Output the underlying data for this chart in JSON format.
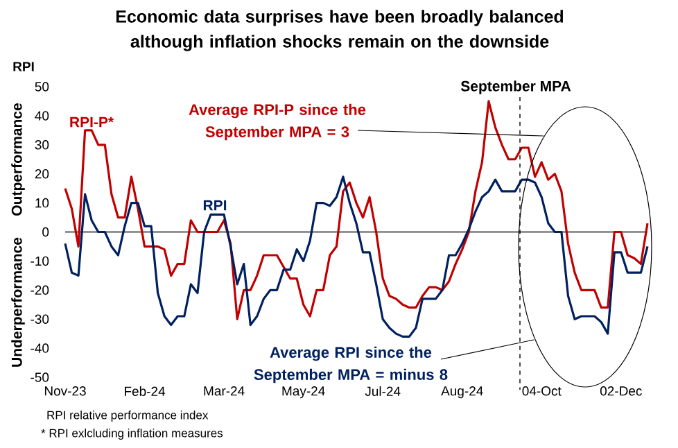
{
  "chart_data": {
    "type": "line",
    "title": "Economic data surprises have been broadly balanced although inflation shocks remain on the downside",
    "ylabel": "RPI",
    "categories": [
      "Nov-23",
      null,
      null,
      null,
      null,
      null,
      null,
      null,
      null,
      null,
      null,
      null,
      "Feb-24",
      null,
      null,
      null,
      null,
      null,
      null,
      null,
      null,
      null,
      null,
      null,
      "Mar-24",
      null,
      null,
      null,
      null,
      null,
      null,
      null,
      null,
      null,
      null,
      null,
      "May-24",
      null,
      null,
      null,
      null,
      null,
      null,
      null,
      null,
      null,
      null,
      null,
      "Jul-24",
      null,
      null,
      null,
      null,
      null,
      null,
      null,
      null,
      null,
      null,
      null,
      "Aug-24",
      null,
      null,
      null,
      null,
      null,
      null,
      null,
      null,
      null,
      null,
      null,
      "04-Oct",
      null,
      null,
      null,
      null,
      null,
      null,
      null,
      null,
      null,
      null,
      null,
      "02-Dec",
      null,
      null,
      null,
      null
    ],
    "series": [
      {
        "name": "RPI-P*",
        "color": "#c00000",
        "values": [
          15,
          8,
          -5,
          35,
          35,
          30,
          30,
          13,
          5,
          5,
          19,
          8,
          -5,
          -5,
          -5,
          -6,
          -15,
          -11,
          -11,
          4,
          0,
          0,
          0,
          0,
          4,
          -4,
          -30,
          -20,
          -20,
          -15,
          -8,
          -8,
          -8,
          -12,
          -16,
          -16,
          -25,
          -29,
          -20,
          -20,
          -8,
          -5,
          14,
          17,
          10,
          5,
          12,
          0,
          -16,
          -22,
          -23,
          -25,
          -26,
          -26,
          -22,
          -19,
          -19,
          -20,
          -17,
          -11,
          -6,
          0,
          14,
          24,
          45,
          36,
          30,
          25,
          25,
          29,
          29,
          19,
          24,
          18,
          20,
          14,
          -4,
          -14,
          -20,
          -20,
          -20,
          -26,
          -26,
          0,
          0,
          -8,
          -9,
          -11,
          3
        ]
      },
      {
        "name": "RPI",
        "color": "#002060",
        "values": [
          -4,
          -14,
          -15,
          13,
          4,
          0,
          0,
          -5,
          -8,
          2,
          10,
          10,
          2,
          2,
          -21,
          -29,
          -32,
          -29,
          -29,
          -18,
          -21,
          0,
          6,
          6,
          6,
          -5,
          -18,
          -11,
          -32,
          -29,
          -23,
          -20,
          -20,
          -13,
          -13,
          -6,
          -10,
          -3,
          10,
          10,
          9,
          12,
          19,
          10,
          3,
          -7,
          -7,
          -18,
          -30,
          -33,
          -35,
          -36,
          -36,
          -33,
          -23,
          -23,
          -23,
          -20,
          -8,
          -8,
          -4,
          1,
          7,
          12,
          14,
          18,
          14,
          14,
          14,
          18,
          18,
          17,
          12,
          3,
          0,
          0,
          -22,
          -30,
          -29,
          -29,
          -29,
          -31,
          -35,
          -7,
          -7,
          -14,
          -14,
          -14,
          -5
        ]
      }
    ],
    "ylim": [
      -50,
      50
    ],
    "yticks": [
      -50,
      -40,
      -30,
      -20,
      -10,
      0,
      10,
      20,
      30,
      40,
      50
    ],
    "ref_lines": [
      {
        "axis": "y",
        "value": 0,
        "color": "#595959",
        "line_style": "solid"
      }
    ],
    "annotations": [
      "Outperformance",
      "Underperformance",
      "Average RPI-P since the September MPA = 3",
      "Average RPI since the September MPA = minus 8",
      "RPI relative performance index",
      "* RPI exlcluding inflation measures",
      "September MPA"
    ],
    "legend": false,
    "grid": false,
    "marker": "none",
    "line_style": "solid"
  }
}
